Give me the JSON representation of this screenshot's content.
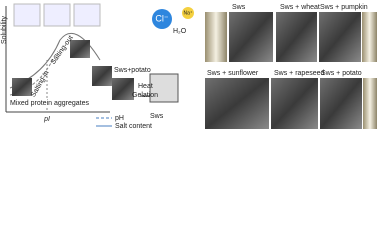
{
  "diagram": {
    "y_axis_label": "Solubility",
    "curve_labels": [
      "Salting-in",
      "Salting-out"
    ],
    "x_mark": "pI",
    "aggregate_label": "Mixed protein aggregates",
    "legend": [
      "pH",
      "Salt content"
    ],
    "process": {
      "sample": "Sws+potato",
      "step1": "Heat",
      "step2": "Gelation",
      "result": "Sws"
    },
    "ions": [
      "Cl⁻",
      "Na⁺",
      "H₂O"
    ]
  },
  "micrographs": [
    {
      "label": "Sws"
    },
    {
      "label": "Sws + wheat"
    },
    {
      "label": "Sws + pumpkin"
    },
    {
      "label": "Sws + sunflower"
    },
    {
      "label": "Sws + rapeseed"
    },
    {
      "label": "Sws + potato"
    }
  ]
}
